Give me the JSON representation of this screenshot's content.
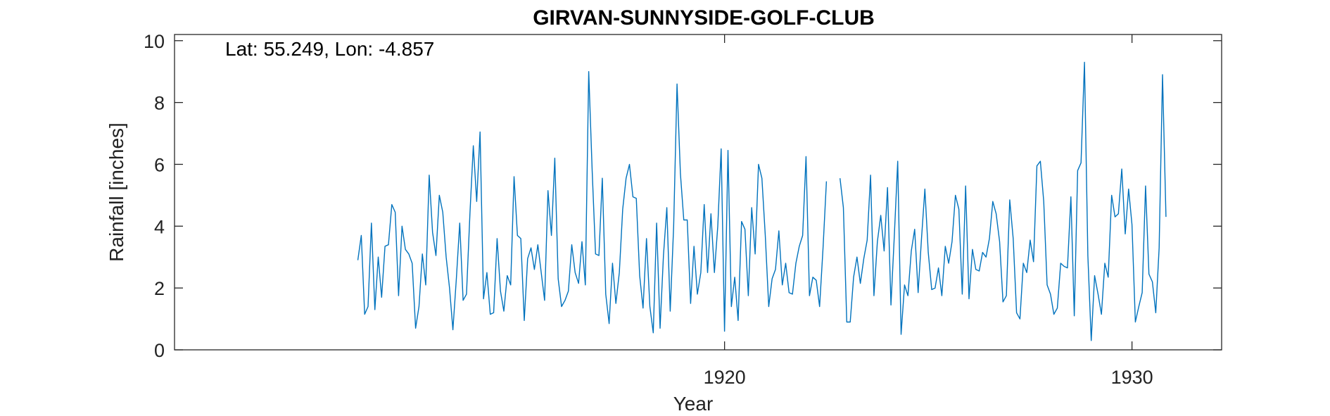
{
  "chart_data": {
    "type": "line",
    "title": "GIRVAN-SUNNYSIDE-GOLF-CLUB",
    "annotation": "Lat: 55.249, Lon: -4.857",
    "xlabel": "Year",
    "ylabel": "Rainfall [inches]",
    "xlim": [
      1906.5,
      1932.2
    ],
    "ylim": [
      0,
      10.2
    ],
    "xticks": [
      1920,
      1930
    ],
    "yticks": [
      0,
      2,
      4,
      6,
      8,
      10
    ],
    "grid": false,
    "color": "#0072BD",
    "series": [
      {
        "start_year": 1911.0,
        "step_months": 1,
        "values": [
          2.9,
          3.7,
          1.15,
          1.4,
          4.1,
          1.3,
          3.0,
          1.7,
          3.35,
          3.4,
          4.7,
          4.45,
          1.75,
          4.0,
          3.25,
          3.1,
          2.8,
          0.7,
          1.4,
          3.1,
          2.1,
          5.65,
          3.8,
          3.05,
          5.0,
          4.45,
          3.0,
          2.0,
          0.65,
          2.3,
          4.1,
          1.6,
          1.8,
          4.4,
          6.6,
          4.8,
          7.05,
          1.65,
          2.5,
          1.15,
          1.2,
          3.6,
          1.9,
          1.25,
          2.4,
          2.1,
          5.6,
          3.7,
          3.6,
          0.95,
          2.95,
          3.3,
          2.6,
          3.4,
          2.5,
          1.6,
          5.15,
          3.7,
          6.2,
          2.3,
          1.4,
          1.6,
          1.9,
          3.4,
          2.5,
          2.15,
          3.5,
          2.1,
          9.0,
          5.8,
          3.1,
          3.05,
          5.55,
          1.8,
          0.85,
          2.8,
          1.5,
          2.5,
          4.55,
          5.55,
          6.0,
          4.95,
          4.9,
          2.4,
          1.35,
          3.6,
          1.4,
          0.55,
          4.1,
          0.7,
          3.05,
          4.6,
          1.25,
          4.0,
          8.6,
          5.7,
          4.2,
          4.2,
          1.5,
          3.35,
          1.8,
          2.5,
          4.7,
          2.5,
          4.4,
          2.5,
          4.0,
          6.5,
          0.6,
          6.45,
          1.4,
          2.35,
          0.95,
          4.15,
          3.9,
          1.75,
          4.6,
          3.1,
          6.0,
          5.55,
          3.7,
          1.4,
          2.3,
          2.6,
          3.85,
          2.1,
          2.8,
          1.85,
          1.8,
          2.8,
          3.35,
          3.7,
          6.25,
          1.75,
          2.35,
          2.25,
          1.4,
          3.3,
          5.45,
          null,
          null,
          null,
          5.55,
          4.6,
          0.9,
          0.9,
          2.35,
          3.0,
          2.15,
          2.95,
          3.55,
          5.65,
          1.75,
          3.5,
          4.35,
          3.2,
          5.25,
          1.45,
          3.7,
          6.1,
          0.5,
          2.1,
          1.75,
          3.2,
          3.9,
          1.85,
          3.6,
          5.2,
          3.15,
          1.95,
          2.0,
          2.65,
          1.75,
          3.35,
          2.8,
          3.5,
          5.0,
          4.55,
          1.8,
          5.3,
          1.65,
          3.25,
          2.6,
          2.55,
          3.15,
          3.0,
          3.6,
          4.8,
          4.4,
          3.5,
          1.55,
          1.75,
          4.85,
          3.6,
          1.2,
          1.0,
          2.8,
          2.5,
          3.55,
          2.85,
          5.95,
          6.1,
          4.8,
          2.1,
          1.8,
          1.15,
          1.35,
          2.8,
          2.7,
          2.65,
          4.95,
          1.1,
          5.8,
          6.05,
          9.3,
          3.05,
          0.3,
          2.4,
          1.8,
          1.15,
          2.8,
          2.35,
          5.0,
          4.3,
          4.4,
          5.85,
          3.75,
          5.2,
          4.05,
          0.9,
          1.4,
          1.85,
          5.3,
          2.45,
          2.2,
          1.2,
          3.3,
          8.9,
          4.3
        ]
      }
    ]
  }
}
